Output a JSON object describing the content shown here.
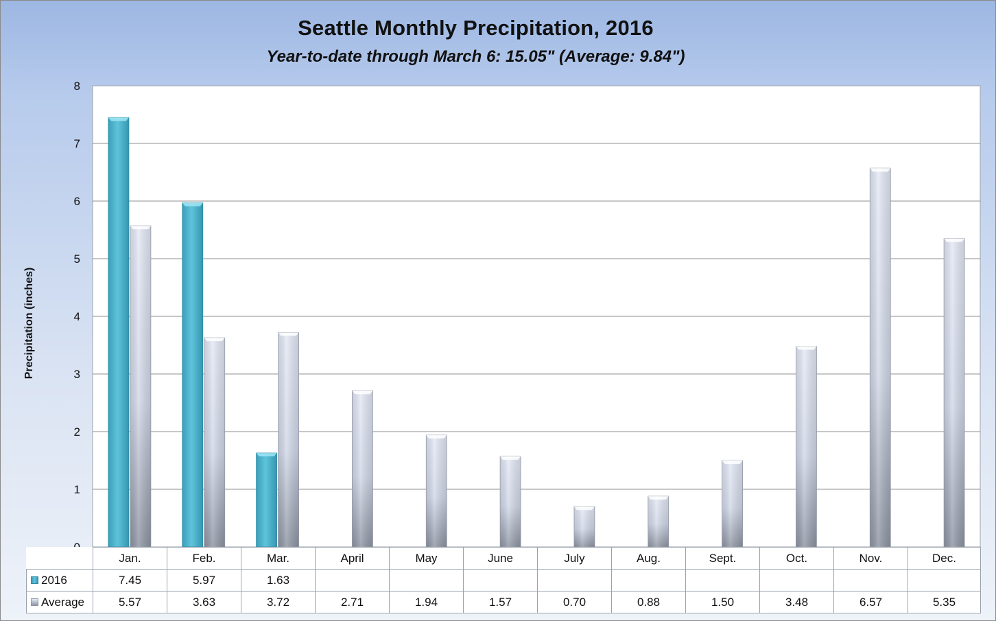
{
  "chart_data": {
    "type": "bar",
    "title": "Seattle Monthly Precipitation, 2016",
    "subtitle": "Year-to-date through March 6: 15.05\" (Average: 9.84\")",
    "xlabel": "",
    "ylabel": "Precipitation (inches)",
    "ylim": [
      0,
      8
    ],
    "yticks": [
      0,
      1,
      2,
      3,
      4,
      5,
      6,
      7,
      8
    ],
    "grid": true,
    "categories": [
      "Jan.",
      "Feb.",
      "Mar.",
      "April",
      "May",
      "June",
      "July",
      "Aug.",
      "Sept.",
      "Oct.",
      "Nov.",
      "Dec."
    ],
    "series": [
      {
        "name": "2016",
        "color": "#4db5cf",
        "values": [
          7.45,
          5.97,
          1.63,
          null,
          null,
          null,
          null,
          null,
          null,
          null,
          null,
          null
        ],
        "labels": [
          "7.45",
          "5.97",
          "1.63",
          "",
          "",
          "",
          "",
          "",
          "",
          "",
          "",
          ""
        ]
      },
      {
        "name": "Average",
        "color": "#c9d1e3",
        "values": [
          5.57,
          3.63,
          3.72,
          2.71,
          1.94,
          1.57,
          0.7,
          0.88,
          1.5,
          3.48,
          6.57,
          5.35
        ],
        "labels": [
          "5.57",
          "3.63",
          "3.72",
          "2.71",
          "1.94",
          "1.57",
          "0.70",
          "0.88",
          "1.50",
          "3.48",
          "6.57",
          "5.35"
        ]
      }
    ],
    "legend": "data-table"
  }
}
